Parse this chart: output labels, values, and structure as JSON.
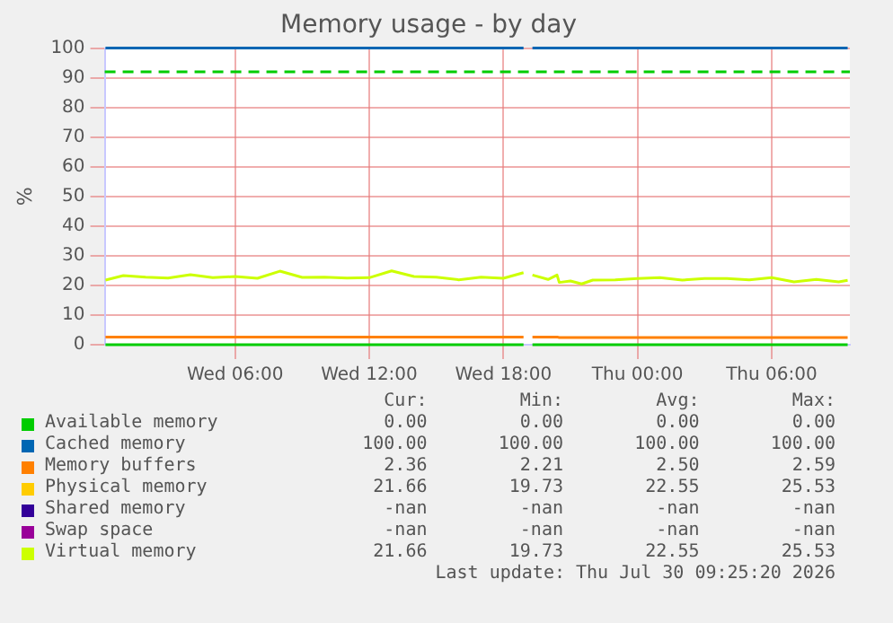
{
  "chart_data": {
    "type": "line",
    "title": "Memory usage - by day",
    "ylabel": "%",
    "x": [
      "2026-07-29T00:12",
      "2026-07-29T01:00",
      "2026-07-29T02:00",
      "2026-07-29T03:00",
      "2026-07-29T04:00",
      "2026-07-29T05:00",
      "2026-07-29T06:00",
      "2026-07-29T07:00",
      "2026-07-29T08:00",
      "2026-07-29T09:00",
      "2026-07-29T10:00",
      "2026-07-29T11:00",
      "2026-07-29T12:00",
      "2026-07-29T13:00",
      "2026-07-29T14:00",
      "2026-07-29T15:00",
      "2026-07-29T16:00",
      "2026-07-29T17:00",
      "2026-07-29T18:00",
      "2026-07-29T18:54",
      "2026-07-29T19:06",
      "2026-07-29T19:18",
      "2026-07-29T20:00",
      "2026-07-29T20:24",
      "2026-07-29T20:30",
      "2026-07-29T21:00",
      "2026-07-29T21:30",
      "2026-07-29T22:00",
      "2026-07-29T23:00",
      "2026-07-30T00:00",
      "2026-07-30T01:00",
      "2026-07-30T02:00",
      "2026-07-30T03:00",
      "2026-07-30T04:00",
      "2026-07-30T05:00",
      "2026-07-30T06:00",
      "2026-07-30T07:00",
      "2026-07-30T08:00",
      "2026-07-30T09:00",
      "2026-07-30T09:24"
    ],
    "xlim": [
      "2026-07-29T00:10",
      "2026-07-30T09:30"
    ],
    "xticks": [
      {
        "value": "2026-07-29T06:00",
        "label": "Wed 06:00"
      },
      {
        "value": "2026-07-29T12:00",
        "label": "Wed 12:00"
      },
      {
        "value": "2026-07-29T18:00",
        "label": "Wed 18:00"
      },
      {
        "value": "2026-07-30T00:00",
        "label": "Thu 00:00"
      },
      {
        "value": "2026-07-30T06:00",
        "label": "Thu 06:00"
      }
    ],
    "ylim": [
      0,
      100
    ],
    "yticks": [
      0,
      10,
      20,
      30,
      40,
      50,
      60,
      70,
      80,
      90,
      100
    ],
    "grid": true,
    "legend": "bottom",
    "marker": "none",
    "series": [
      {
        "name": "Available memory",
        "color": "#00cc00",
        "values": [
          0,
          0,
          0,
          0,
          0,
          0,
          0,
          0,
          0,
          0,
          0,
          0,
          0,
          0,
          0,
          0,
          0,
          0,
          0,
          0,
          null,
          0,
          0,
          0,
          0,
          0,
          0,
          0,
          0,
          0,
          0,
          0,
          0,
          0,
          0,
          0,
          0,
          0,
          0,
          0
        ]
      },
      {
        "name": "Cached memory",
        "color": "#0066b3",
        "values": [
          100,
          100,
          100,
          100,
          100,
          100,
          100,
          100,
          100,
          100,
          100,
          100,
          100,
          100,
          100,
          100,
          100,
          100,
          100,
          100,
          null,
          100,
          100,
          100,
          100,
          100,
          100,
          100,
          100,
          100,
          100,
          100,
          100,
          100,
          100,
          100,
          100,
          100,
          100,
          100
        ]
      },
      {
        "name": "Memory buffers",
        "color": "#ff8000",
        "values": [
          2.6,
          2.6,
          2.6,
          2.6,
          2.6,
          2.6,
          2.6,
          2.6,
          2.6,
          2.6,
          2.6,
          2.6,
          2.6,
          2.6,
          2.6,
          2.6,
          2.6,
          2.6,
          2.6,
          2.6,
          null,
          2.6,
          2.6,
          2.6,
          2.4,
          2.4,
          2.4,
          2.4,
          2.4,
          2.4,
          2.4,
          2.4,
          2.4,
          2.4,
          2.4,
          2.4,
          2.4,
          2.4,
          2.4,
          2.4
        ]
      },
      {
        "name": "Physical memory",
        "color": "#ffcc00",
        "values": [
          null,
          null,
          null,
          null,
          null,
          null,
          null,
          null,
          null,
          null,
          null,
          null,
          null,
          null,
          null,
          null,
          null,
          null,
          null,
          null,
          null,
          null,
          null,
          null,
          null,
          null,
          null,
          null,
          null,
          null,
          null,
          null,
          null,
          null,
          null,
          null,
          null,
          null,
          null,
          null
        ]
      },
      {
        "name": "Shared memory",
        "color": "#330099",
        "values": [
          null,
          null,
          null,
          null,
          null,
          null,
          null,
          null,
          null,
          null,
          null,
          null,
          null,
          null,
          null,
          null,
          null,
          null,
          null,
          null,
          null,
          null,
          null,
          null,
          null,
          null,
          null,
          null,
          null,
          null,
          null,
          null,
          null,
          null,
          null,
          null,
          null,
          null,
          null,
          null
        ]
      },
      {
        "name": "Swap space",
        "color": "#990099",
        "values": [
          null,
          null,
          null,
          null,
          null,
          null,
          null,
          null,
          null,
          null,
          null,
          null,
          null,
          null,
          null,
          null,
          null,
          null,
          null,
          null,
          null,
          null,
          null,
          null,
          null,
          null,
          null,
          null,
          null,
          null,
          null,
          null,
          null,
          null,
          null,
          null,
          null,
          null,
          null,
          null
        ]
      },
      {
        "name": "Virtual memory",
        "color": "#ccff00",
        "values": [
          21.8,
          23.3,
          22.8,
          22.5,
          23.6,
          22.6,
          23.0,
          22.4,
          24.8,
          22.7,
          22.8,
          22.5,
          22.6,
          24.9,
          23.0,
          22.8,
          21.9,
          22.8,
          22.4,
          24.3,
          null,
          23.5,
          22.0,
          23.5,
          21.0,
          21.5,
          20.5,
          21.8,
          21.9,
          22.3,
          22.6,
          21.8,
          22.3,
          22.3,
          21.9,
          22.6,
          21.2,
          22.0,
          21.2,
          21.7
        ]
      }
    ],
    "ref_lines": [
      {
        "axis": "y",
        "value": 92,
        "color": "#00cc00",
        "line_style": "dashed"
      }
    ],
    "annotations": [
      "Cur:",
      "Min:",
      "Avg:",
      "Max:",
      "0.00",
      "0.00",
      "0.00",
      "0.00",
      "100.00",
      "100.00",
      "100.00",
      "100.00",
      "2.36",
      "2.21",
      "2.50",
      "2.59",
      "21.66",
      "19.73",
      "22.55",
      "25.53",
      "-nan",
      "-nan",
      "-nan",
      "-nan",
      "-nan",
      "-nan",
      "-nan",
      "-nan",
      "21.66",
      "19.73",
      "22.55",
      "25.53",
      "Last update: Thu Jul 30 09:25:20 2026"
    ]
  }
}
